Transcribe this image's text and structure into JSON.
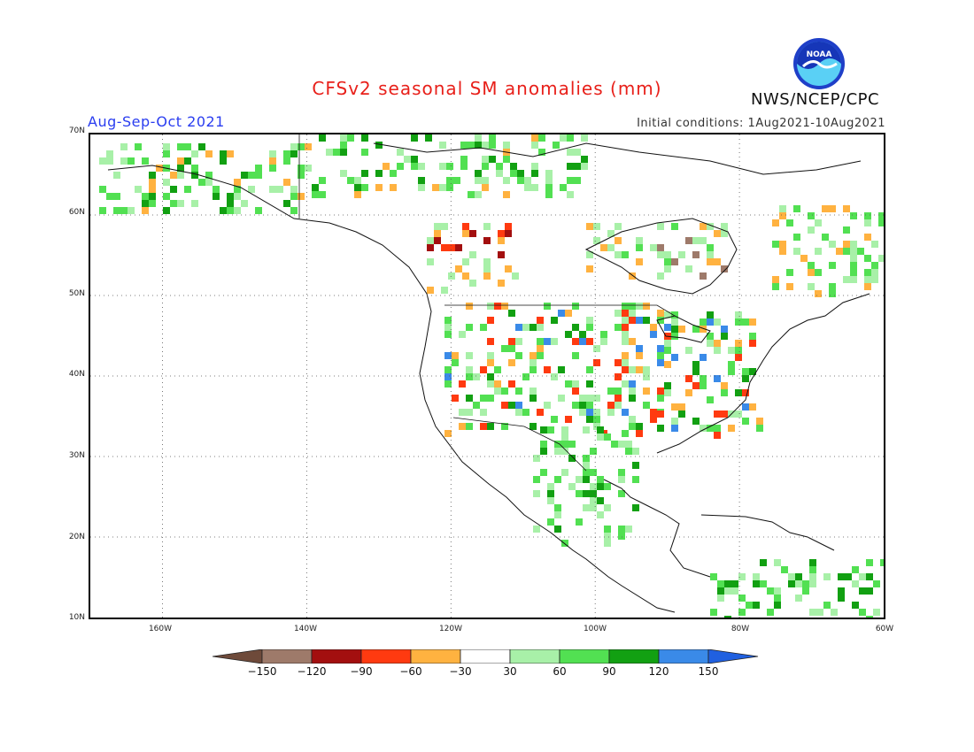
{
  "header": {
    "title": "CFSv2 seasonal SM anomalies (mm)",
    "period": "Aug-Sep-Oct 2021",
    "initial_conditions": "Initial conditions: 1Aug2021-10Aug2021",
    "agency": "NWS/NCEP/CPC",
    "logo_text": "NOAA"
  },
  "map": {
    "lon_range": [
      -170,
      -60
    ],
    "lat_range": [
      10,
      70
    ],
    "lat_labels": [
      "70N",
      "60N",
      "50N",
      "40N",
      "30N",
      "20N",
      "10N"
    ],
    "lon_labels": [
      "160W",
      "140W",
      "120W",
      "100W",
      "80W",
      "60W"
    ]
  },
  "legend": {
    "labels": [
      "−150",
      "−120",
      "−90",
      "−60",
      "−30",
      "30",
      "60",
      "90",
      "120",
      "150"
    ],
    "colors": [
      "#6e4a3a",
      "#9e7a6a",
      "#a30f0f",
      "#ff3a10",
      "#ffb240",
      "#ffffff",
      "#a8f0a8",
      "#52e052",
      "#12a012",
      "#3a8ae8",
      "#2060e0"
    ]
  }
}
